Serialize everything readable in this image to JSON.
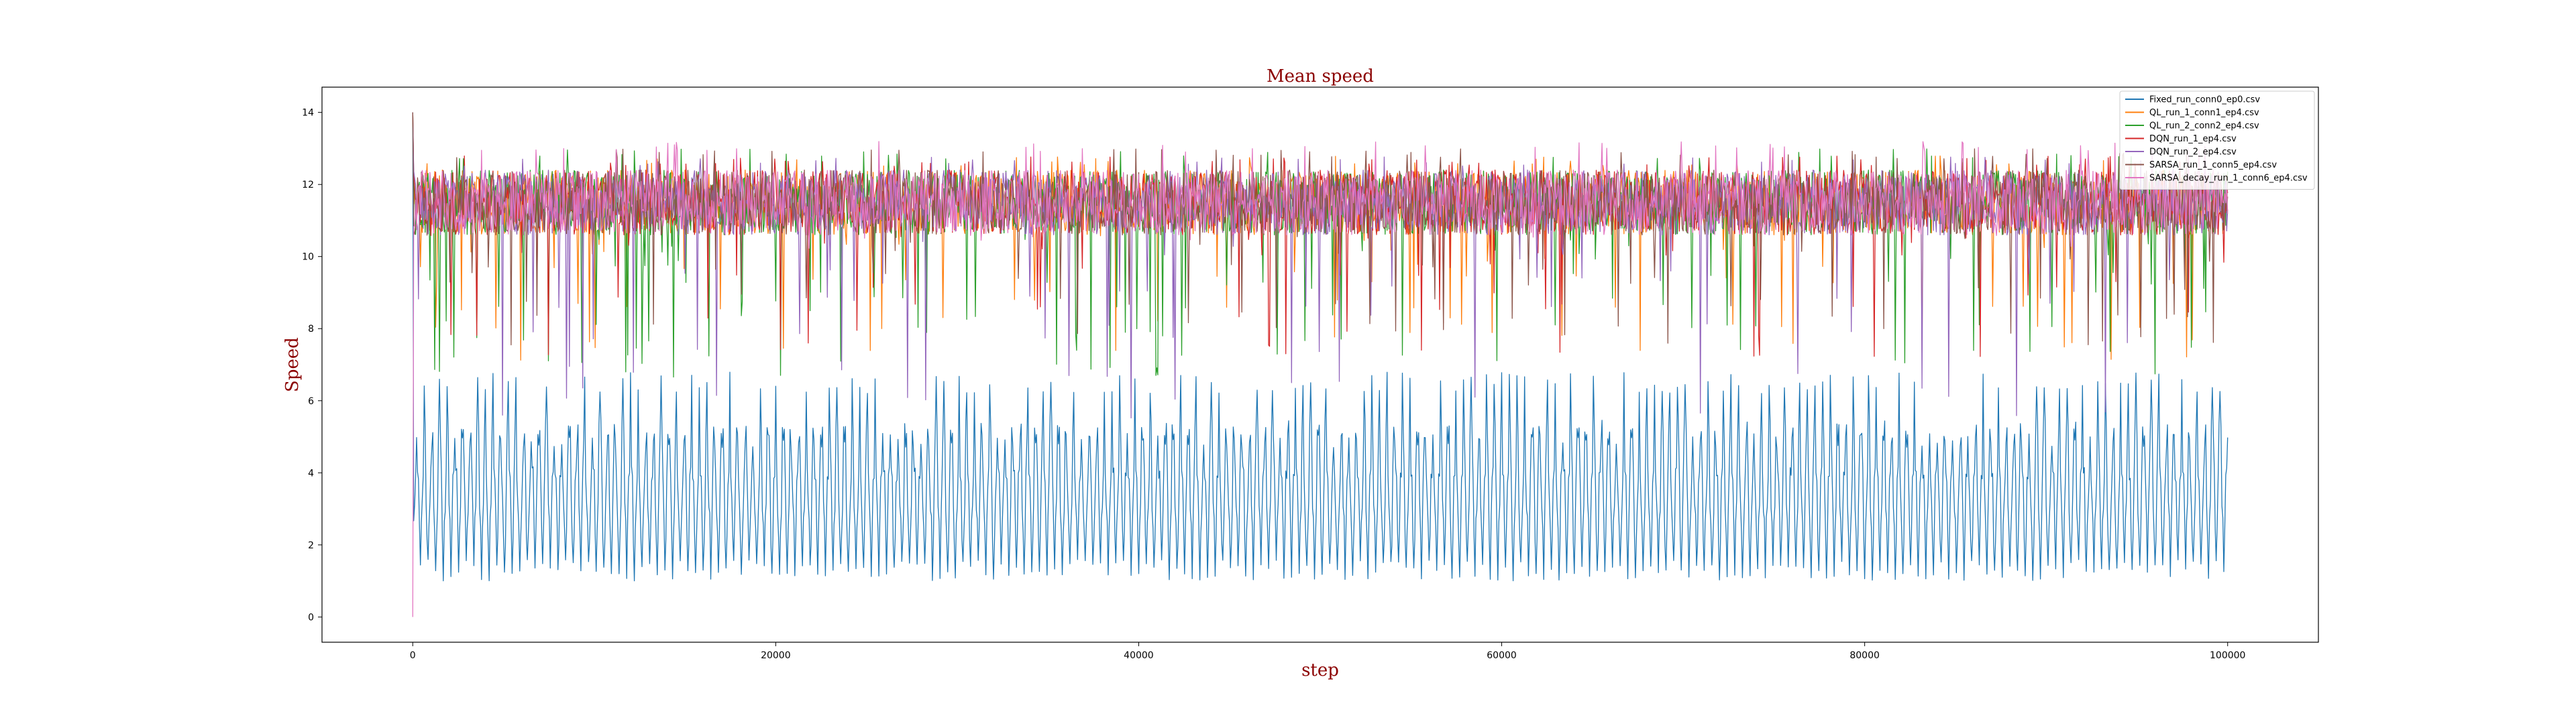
{
  "chart_data": {
    "type": "line",
    "title": "Mean speed",
    "xlabel": "step",
    "ylabel": "Speed",
    "xlim": [
      -5000,
      105000
    ],
    "ylim": [
      -0.7,
      14.7
    ],
    "xticks": [
      0,
      20000,
      40000,
      60000,
      80000,
      100000
    ],
    "xtick_labels": [
      "0",
      "20000",
      "40000",
      "60000",
      "80000",
      "100000"
    ],
    "yticks": [
      0,
      2,
      4,
      6,
      8,
      10,
      12,
      14
    ],
    "ytick_labels": [
      "0",
      "2",
      "4",
      "6",
      "8",
      "10",
      "12",
      "14"
    ],
    "grid": false,
    "legend_position": "top-right",
    "series": [
      {
        "name": "Fixed_run_conn0_ep0.csv",
        "color": "#1f77b4",
        "x": [
          0,
          200,
          600,
          1000,
          20000,
          40000,
          60000,
          80000,
          100000
        ],
        "values": [
          14.0,
          3.5,
          1.5,
          6.5,
          1.2,
          6.5,
          1.2,
          6.5,
          1.3
        ],
        "approx_range_after_start": [
          1.0,
          6.8
        ]
      },
      {
        "name": "QL_run_1_conn1_ep4.csv",
        "color": "#ff7f0e",
        "x": [
          0,
          5000,
          20000,
          40000,
          60000,
          80000,
          100000
        ],
        "values": [
          14.0,
          10.5,
          11.0,
          11.5,
          10.5,
          11.0,
          11.5
        ],
        "approx_range_after_start": [
          7.0,
          12.8
        ]
      },
      {
        "name": "QL_run_2_conn2_ep4.csv",
        "color": "#2ca02c",
        "x": [
          0,
          5000,
          20000,
          40000,
          60000,
          80000,
          100000
        ],
        "values": [
          14.0,
          10.0,
          10.5,
          11.0,
          10.5,
          11.0,
          10.0
        ],
        "approx_range_after_start": [
          6.6,
          13.0
        ]
      },
      {
        "name": "DQN_run_1_ep4.csv",
        "color": "#d62728",
        "x": [
          0,
          5000,
          20000,
          40000,
          60000,
          80000,
          100000
        ],
        "values": [
          14.0,
          10.5,
          11.0,
          11.5,
          11.5,
          11.5,
          11.5
        ],
        "approx_range_after_start": [
          7.2,
          12.8
        ]
      },
      {
        "name": "DQN_run_2_ep4.csv",
        "color": "#9467bd",
        "x": [
          0,
          2500,
          5000,
          20000,
          40000,
          60000,
          80000,
          100000
        ],
        "values": [
          14.0,
          5.5,
          10.0,
          11.0,
          11.5,
          11.5,
          11.5,
          11.5
        ],
        "approx_range_after_start": [
          5.5,
          12.8
        ]
      },
      {
        "name": "SARSA_run_1_conn5_ep4.csv",
        "color": "#8c564b",
        "x": [
          0,
          5000,
          20000,
          40000,
          60000,
          80000,
          100000
        ],
        "values": [
          14.0,
          11.0,
          11.5,
          11.5,
          11.0,
          11.5,
          11.5
        ],
        "approx_range_after_start": [
          7.5,
          13.0
        ]
      },
      {
        "name": "SARSA_decay_run_1_conn6_ep4.csv",
        "color": "#e377c2",
        "x": [
          0,
          200,
          5000,
          20000,
          40000,
          60000,
          80000,
          100000
        ],
        "values": [
          0.0,
          12.0,
          11.5,
          11.5,
          11.5,
          11.5,
          11.5,
          11.5
        ],
        "approx_range_after_start": [
          10.2,
          13.2
        ]
      }
    ]
  }
}
